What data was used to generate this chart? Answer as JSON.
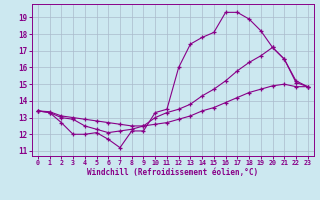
{
  "xlabel": "Windchill (Refroidissement éolien,°C)",
  "xlim": [
    -0.5,
    23.5
  ],
  "ylim": [
    10.7,
    19.8
  ],
  "yticks": [
    11,
    12,
    13,
    14,
    15,
    16,
    17,
    18,
    19
  ],
  "xticks": [
    0,
    1,
    2,
    3,
    4,
    5,
    6,
    7,
    8,
    9,
    10,
    11,
    12,
    13,
    14,
    15,
    16,
    17,
    18,
    19,
    20,
    21,
    22,
    23
  ],
  "bg_color": "#cce8f0",
  "line_color": "#880088",
  "grid_color": "#aabbcc",
  "series1_x": [
    0,
    1,
    2,
    3,
    4,
    5,
    6,
    7,
    8,
    9,
    10,
    11,
    12,
    13,
    14,
    15,
    16,
    17,
    18,
    19,
    20,
    21,
    22,
    23
  ],
  "series1_y": [
    13.4,
    13.3,
    12.7,
    12.0,
    12.0,
    12.1,
    11.7,
    11.2,
    12.2,
    12.2,
    13.3,
    13.5,
    16.0,
    17.4,
    17.8,
    18.1,
    19.3,
    19.3,
    18.9,
    18.2,
    17.2,
    16.5,
    15.1,
    14.85
  ],
  "series2_x": [
    0,
    1,
    2,
    3,
    4,
    5,
    6,
    7,
    8,
    9,
    10,
    11,
    12,
    13,
    14,
    15,
    16,
    17,
    18,
    19,
    20,
    21,
    22,
    23
  ],
  "series2_y": [
    13.4,
    13.3,
    13.0,
    12.9,
    12.5,
    12.3,
    12.1,
    12.2,
    12.3,
    12.5,
    13.0,
    13.3,
    13.5,
    13.8,
    14.3,
    14.7,
    15.2,
    15.8,
    16.3,
    16.7,
    17.2,
    16.5,
    15.2,
    14.85
  ],
  "series3_x": [
    0,
    1,
    2,
    3,
    4,
    5,
    6,
    7,
    8,
    9,
    10,
    11,
    12,
    13,
    14,
    15,
    16,
    17,
    18,
    19,
    20,
    21,
    22,
    23
  ],
  "series3_y": [
    13.4,
    13.35,
    13.1,
    13.0,
    12.9,
    12.8,
    12.7,
    12.6,
    12.5,
    12.5,
    12.6,
    12.7,
    12.9,
    13.1,
    13.4,
    13.6,
    13.9,
    14.2,
    14.5,
    14.7,
    14.9,
    15.0,
    14.85,
    14.85
  ]
}
